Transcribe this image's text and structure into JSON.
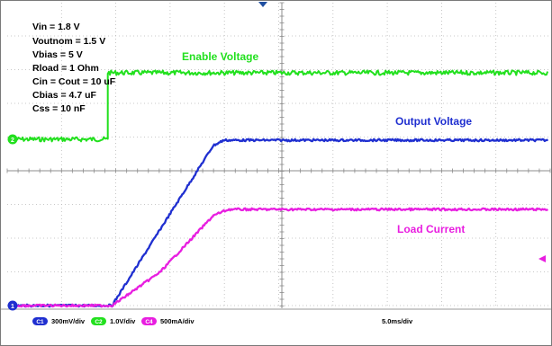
{
  "chart_data": {
    "type": "line",
    "title": "",
    "xlabel": "",
    "ylabel": "",
    "grid": true,
    "time_per_div_ms": 5.0,
    "x_divisions": 10,
    "y_divisions": 8,
    "conditions": [
      "Vin = 1.8 V",
      "Voutnom = 1.5 V",
      "Vbias = 5 V",
      "Rload = 1 Ohm",
      "Cin = Cout = 10 uF",
      "Cbias = 4.7 uF",
      "Css = 10 nF"
    ],
    "series": [
      {
        "name": "Enable Voltage",
        "channel": "C2",
        "color": "#22e01e",
        "scale_label": "1.0V/div",
        "points": [
          [
            0,
            1.9
          ],
          [
            8.6,
            1.9
          ],
          [
            8.6,
            5.0
          ],
          [
            50,
            5.0
          ]
        ]
      },
      {
        "name": "Output Voltage",
        "channel": "C1",
        "color": "#1f2fd0",
        "scale_label": "300mV/div",
        "points": [
          [
            0,
            0.0
          ],
          [
            9.0,
            0.0
          ],
          [
            18.5,
            1.45
          ],
          [
            19.5,
            1.5
          ],
          [
            50,
            1.5
          ]
        ]
      },
      {
        "name": "Load Current",
        "channel": "C4",
        "color": "#e81ee0",
        "scale_label": "500mA/div",
        "points": [
          [
            0,
            0.0
          ],
          [
            9.0,
            0.0
          ],
          [
            10.5,
            0.17
          ],
          [
            13.5,
            0.52
          ],
          [
            18.5,
            1.4
          ],
          [
            19.3,
            1.46
          ],
          [
            20.0,
            1.5
          ],
          [
            50,
            1.5
          ]
        ]
      }
    ]
  },
  "status": {
    "timebase_label": "5.0ms/div"
  }
}
